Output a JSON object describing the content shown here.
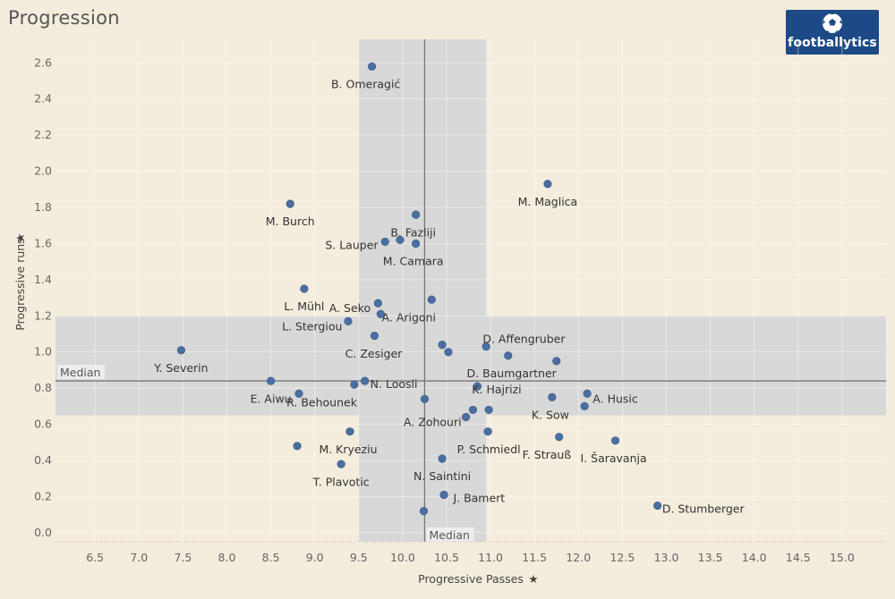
{
  "header": {
    "title": "Progression",
    "logo_text": "footballytics"
  },
  "chart_data": {
    "type": "scatter",
    "title": "Progression",
    "xlabel": "Progressive Passes",
    "ylabel": "Progressive runs",
    "xlim": [
      6.05,
      15.5
    ],
    "ylim": [
      -0.05,
      2.73
    ],
    "xticks": [
      6.5,
      7.0,
      7.5,
      8.0,
      8.5,
      9.0,
      9.5,
      10.0,
      10.5,
      11.0,
      11.5,
      12.0,
      12.5,
      13.0,
      13.5,
      14.0,
      14.5,
      15.0
    ],
    "xtick_labels": [
      "6.5",
      "7.0",
      "7.5",
      "8.0",
      "8.5",
      "9.0",
      "9.5",
      "10.0",
      "10.5",
      "11.0",
      "11.5",
      "12.0",
      "12.5",
      "13.0",
      "13.5",
      "14.0",
      "14.5",
      "15.0"
    ],
    "yticks": [
      0.0,
      0.2,
      0.4,
      0.6,
      0.8,
      1.0,
      1.2,
      1.4,
      1.6,
      1.8,
      2.0,
      2.2,
      2.4,
      2.6
    ],
    "ytick_labels": [
      "0.0",
      "0.2",
      "0.4",
      "0.6",
      "0.8",
      "1.0",
      "1.2",
      "1.4",
      "1.6",
      "1.8",
      "2.0",
      "2.2",
      "2.4",
      "2.6"
    ],
    "median_x": 10.25,
    "median_y": 0.84,
    "median_label": "Median",
    "band_x": [
      9.5,
      10.95
    ],
    "band_y": [
      0.65,
      1.2
    ],
    "point_color": "#4a6fa0",
    "band_color": "#d8d8d8",
    "median_line_color": "#777777",
    "points": [
      {
        "x": 9.65,
        "y": 2.58
      },
      {
        "x": 11.65,
        "y": 1.93
      },
      {
        "x": 8.72,
        "y": 1.82
      },
      {
        "x": 10.15,
        "y": 1.76
      },
      {
        "x": 9.8,
        "y": 1.61
      },
      {
        "x": 9.97,
        "y": 1.62
      },
      {
        "x": 10.15,
        "y": 1.6
      },
      {
        "x": 8.88,
        "y": 1.35
      },
      {
        "x": 10.33,
        "y": 1.29
      },
      {
        "x": 9.72,
        "y": 1.27
      },
      {
        "x": 9.75,
        "y": 1.21
      },
      {
        "x": 9.38,
        "y": 1.17
      },
      {
        "x": 9.68,
        "y": 1.09
      },
      {
        "x": 10.45,
        "y": 1.04
      },
      {
        "x": 10.52,
        "y": 1.0
      },
      {
        "x": 10.95,
        "y": 1.03
      },
      {
        "x": 11.2,
        "y": 0.98
      },
      {
        "x": 11.75,
        "y": 0.95
      },
      {
        "x": 7.48,
        "y": 1.01
      },
      {
        "x": 8.5,
        "y": 0.84
      },
      {
        "x": 8.82,
        "y": 0.77
      },
      {
        "x": 9.45,
        "y": 0.82
      },
      {
        "x": 9.57,
        "y": 0.84
      },
      {
        "x": 10.25,
        "y": 0.74
      },
      {
        "x": 10.85,
        "y": 0.81
      },
      {
        "x": 11.7,
        "y": 0.75
      },
      {
        "x": 12.1,
        "y": 0.77
      },
      {
        "x": 12.07,
        "y": 0.7
      },
      {
        "x": 10.72,
        "y": 0.64
      },
      {
        "x": 10.8,
        "y": 0.68
      },
      {
        "x": 10.98,
        "y": 0.68
      },
      {
        "x": 9.4,
        "y": 0.56
      },
      {
        "x": 8.8,
        "y": 0.48
      },
      {
        "x": 10.97,
        "y": 0.56
      },
      {
        "x": 11.78,
        "y": 0.53
      },
      {
        "x": 12.42,
        "y": 0.51
      },
      {
        "x": 9.3,
        "y": 0.38
      },
      {
        "x": 10.45,
        "y": 0.41
      },
      {
        "x": 10.47,
        "y": 0.21
      },
      {
        "x": 10.24,
        "y": 0.12
      },
      {
        "x": 12.9,
        "y": 0.15
      }
    ],
    "labels": [
      {
        "text": "B. Omeragić",
        "x": 9.58,
        "y": 2.48
      },
      {
        "text": "M. Maglica",
        "x": 11.65,
        "y": 1.83
      },
      {
        "text": "M. Burch",
        "x": 8.72,
        "y": 1.72
      },
      {
        "text": "B. Fazliji",
        "x": 10.12,
        "y": 1.66
      },
      {
        "text": "S. Lauper",
        "x": 9.42,
        "y": 1.59
      },
      {
        "text": "M. Camara",
        "x": 10.12,
        "y": 1.5
      },
      {
        "text": "L. Mühl",
        "x": 8.88,
        "y": 1.25
      },
      {
        "text": "A. Seko",
        "x": 9.4,
        "y": 1.24
      },
      {
        "text": "A. Arigoni",
        "x": 10.07,
        "y": 1.19
      },
      {
        "text": "L. Stergiou",
        "x": 8.97,
        "y": 1.14
      },
      {
        "text": "D. Affengruber",
        "x": 11.38,
        "y": 1.07
      },
      {
        "text": "C. Zesiger",
        "x": 9.67,
        "y": 0.99
      },
      {
        "text": "Y. Severin",
        "x": 7.48,
        "y": 0.91
      },
      {
        "text": "D. Baumgartner",
        "x": 11.24,
        "y": 0.88
      },
      {
        "text": "N. Loosli",
        "x": 9.9,
        "y": 0.82
      },
      {
        "text": "K. Hajrizi",
        "x": 11.07,
        "y": 0.79
      },
      {
        "text": "E. Aiwu",
        "x": 8.5,
        "y": 0.74
      },
      {
        "text": "R. Behounek",
        "x": 9.08,
        "y": 0.72
      },
      {
        "text": "A. Husic",
        "x": 12.42,
        "y": 0.74
      },
      {
        "text": "K. Sow",
        "x": 11.68,
        "y": 0.65
      },
      {
        "text": "A. Zohouri",
        "x": 10.34,
        "y": 0.61
      },
      {
        "text": "M. Kryeziu",
        "x": 9.38,
        "y": 0.46
      },
      {
        "text": "P. Schmiedl",
        "x": 10.98,
        "y": 0.46
      },
      {
        "text": "F. Strauß",
        "x": 11.64,
        "y": 0.43
      },
      {
        "text": "I. Šaravanja",
        "x": 12.4,
        "y": 0.41
      },
      {
        "text": "T. Plavotic",
        "x": 9.3,
        "y": 0.28
      },
      {
        "text": "N. Saintini",
        "x": 10.45,
        "y": 0.31
      },
      {
        "text": "J. Bamert",
        "x": 10.87,
        "y": 0.19
      },
      {
        "text": "D. Stumberger",
        "x": 13.42,
        "y": 0.13
      }
    ]
  }
}
